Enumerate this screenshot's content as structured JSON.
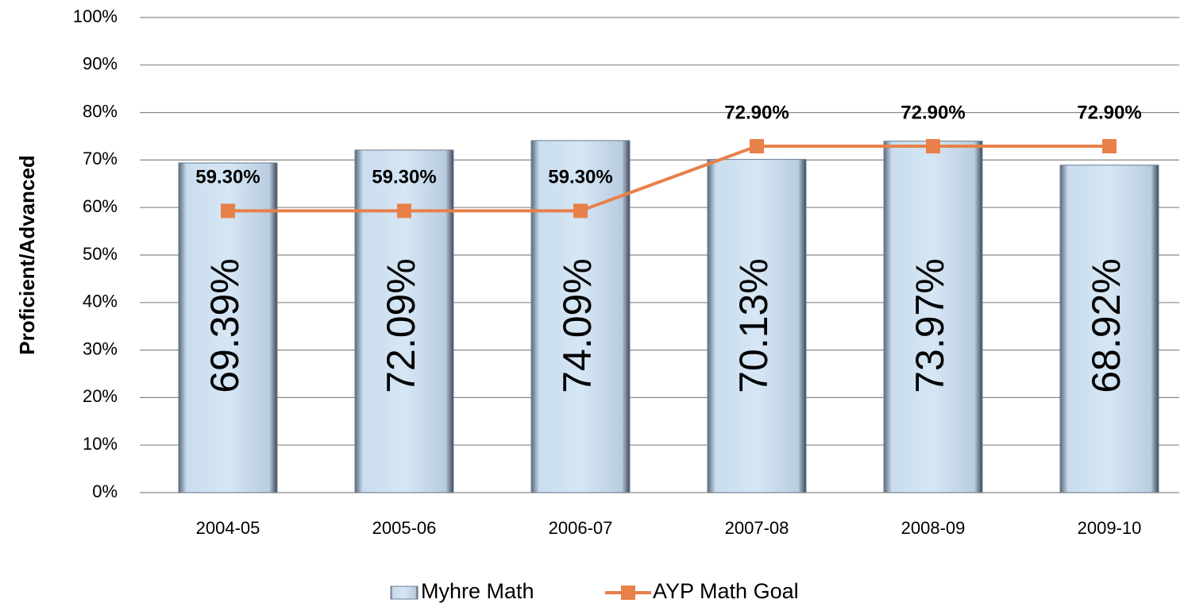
{
  "chart_data": {
    "type": "bar-line",
    "y_label": "Proficient/Advanced",
    "categories": [
      "2004-05",
      "2005-06",
      "2006-07",
      "2007-08",
      "2008-09",
      "2009-10"
    ],
    "series": [
      {
        "name": "Myhre Math",
        "type": "bar",
        "color": "#c9ddef",
        "values": [
          69.39,
          72.09,
          74.09,
          70.13,
          73.97,
          68.92
        ],
        "value_labels": [
          "69.39%",
          "72.09%",
          "74.09%",
          "70.13%",
          "73.97%",
          "68.92%"
        ]
      },
      {
        "name": "AYP Math Goal",
        "type": "line",
        "color": "#e8804a",
        "values": [
          59.3,
          59.3,
          59.3,
          72.9,
          72.9,
          72.9
        ],
        "value_labels": [
          "59.30%",
          "59.30%",
          "59.30%",
          "72.90%",
          "72.90%",
          "72.90%"
        ]
      }
    ],
    "ylim": [
      0,
      100
    ],
    "yticks": [
      {
        "value": 0,
        "label": "0%"
      },
      {
        "value": 10,
        "label": "10%"
      },
      {
        "value": 20,
        "label": "20%"
      },
      {
        "value": 30,
        "label": "30%"
      },
      {
        "value": 40,
        "label": "40%"
      },
      {
        "value": 50,
        "label": "50%"
      },
      {
        "value": 60,
        "label": "60%"
      },
      {
        "value": 70,
        "label": "70%"
      },
      {
        "value": 80,
        "label": "80%"
      },
      {
        "value": 90,
        "label": "90%"
      },
      {
        "value": 100,
        "label": "100%"
      }
    ],
    "grid": true
  }
}
